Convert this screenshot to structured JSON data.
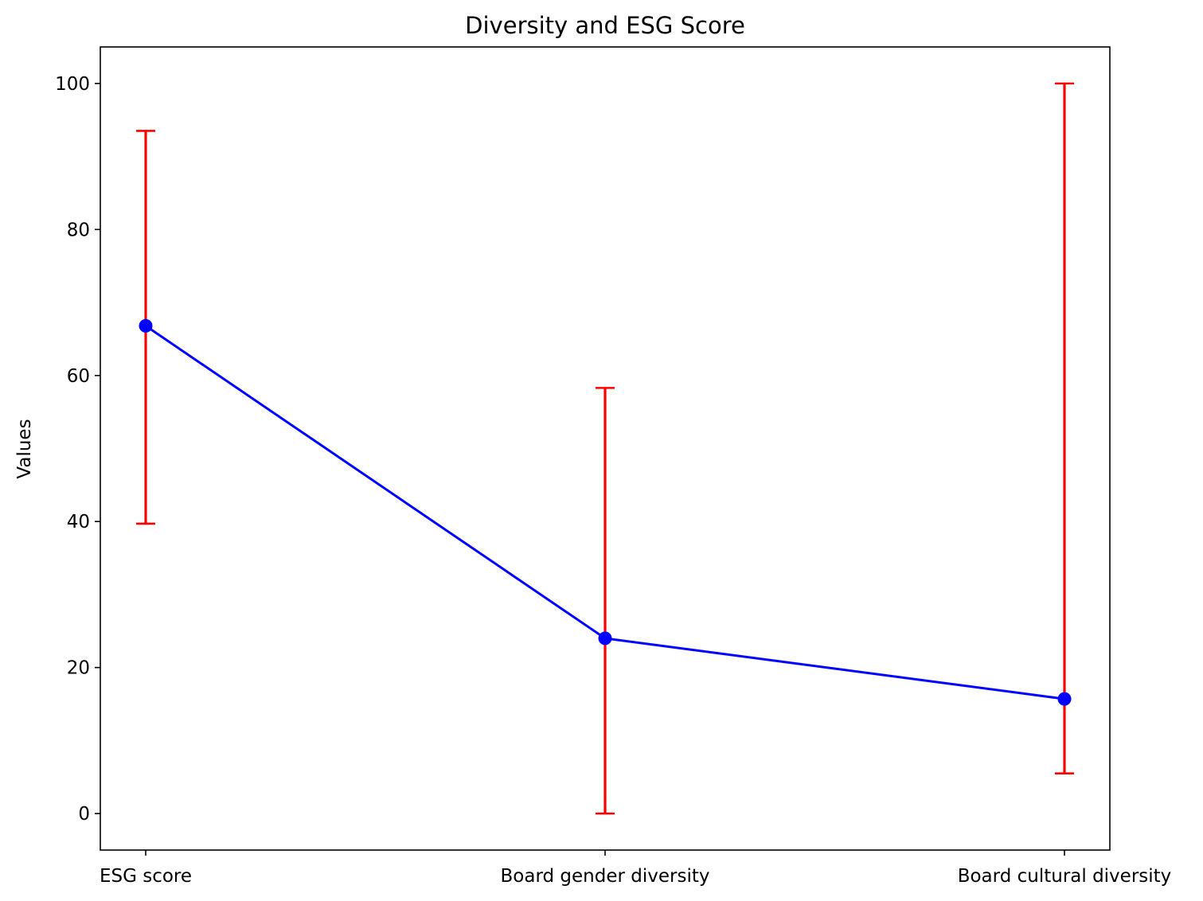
{
  "chart_data": {
    "type": "line",
    "title": "Diversity and ESG Score",
    "xlabel": "",
    "ylabel": "Values",
    "categories": [
      "ESG score",
      "Board gender diversity",
      "Board cultural diversity"
    ],
    "series": [
      {
        "values": [
          66.8,
          24.0,
          15.7
        ],
        "error_lower": [
          39.7,
          0.0,
          5.5
        ],
        "error_upper": [
          93.5,
          58.3,
          100.0
        ],
        "line_color": "#0000ff",
        "marker_color": "#0000ff",
        "error_color": "#ff0000"
      }
    ],
    "ylim": [
      -5,
      105
    ],
    "yticks": [
      0,
      20,
      40,
      60,
      80,
      100
    ],
    "grid": false,
    "legend": false
  }
}
